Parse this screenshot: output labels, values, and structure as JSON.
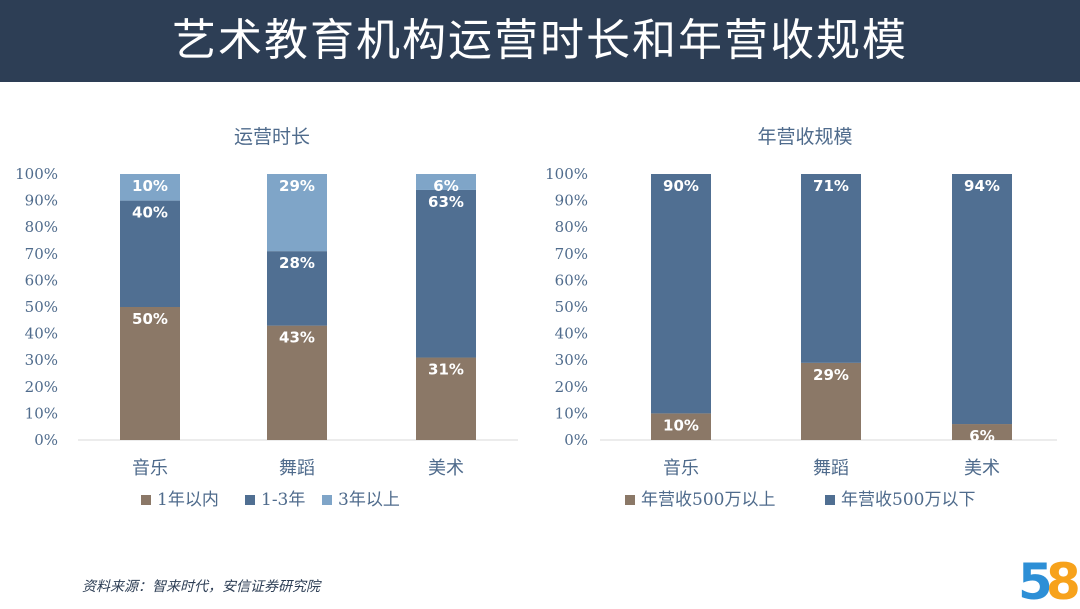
{
  "title": "艺术教育机构运营时长和年营收规模",
  "source": "资料来源：智来时代，安信证券研究院",
  "colors": {
    "header": "#2d3e55",
    "brown": "#8b7867",
    "dark_blue": "#506f92",
    "light_blue": "#7fa5c8",
    "axis_text": "#4f6b8c"
  },
  "logo": {
    "text": "58",
    "colors": [
      "#e8402b",
      "#f7a21b",
      "#2d8fd6",
      "#3fb34f"
    ]
  },
  "chart_data": [
    {
      "type": "bar",
      "stacked": true,
      "title": "运营时长",
      "categories": [
        "音乐",
        "舞蹈",
        "美术"
      ],
      "ylim": [
        0,
        100
      ],
      "yticks": [
        "0%",
        "10%",
        "20%",
        "30%",
        "40%",
        "50%",
        "60%",
        "70%",
        "80%",
        "90%",
        "100%"
      ],
      "legend_position": "bottom",
      "series": [
        {
          "name": "1年以内",
          "color": "#8b7867",
          "values": [
            50,
            43,
            31
          ],
          "labels": [
            "50%",
            "43%",
            "31%"
          ]
        },
        {
          "name": "1-3年",
          "color": "#506f92",
          "values": [
            40,
            28,
            63
          ],
          "labels": [
            "40%",
            "28%",
            "63%"
          ]
        },
        {
          "name": "3年以上",
          "color": "#7fa5c8",
          "values": [
            10,
            29,
            6
          ],
          "labels": [
            "10%",
            "29%",
            "6%"
          ]
        }
      ]
    },
    {
      "type": "bar",
      "stacked": true,
      "title": "年营收规模",
      "categories": [
        "音乐",
        "舞蹈",
        "美术"
      ],
      "ylim": [
        0,
        100
      ],
      "yticks": [
        "0%",
        "10%",
        "20%",
        "30%",
        "40%",
        "50%",
        "60%",
        "70%",
        "80%",
        "90%",
        "100%"
      ],
      "legend_position": "bottom",
      "series": [
        {
          "name": "年营收500万以上",
          "color": "#8b7867",
          "values": [
            10,
            29,
            6
          ],
          "labels": [
            "10%",
            "29%",
            "6%"
          ]
        },
        {
          "name": "年营收500万以下",
          "color": "#506f92",
          "values": [
            90,
            71,
            94
          ],
          "labels": [
            "90%",
            "71%",
            "94%"
          ]
        }
      ]
    }
  ]
}
